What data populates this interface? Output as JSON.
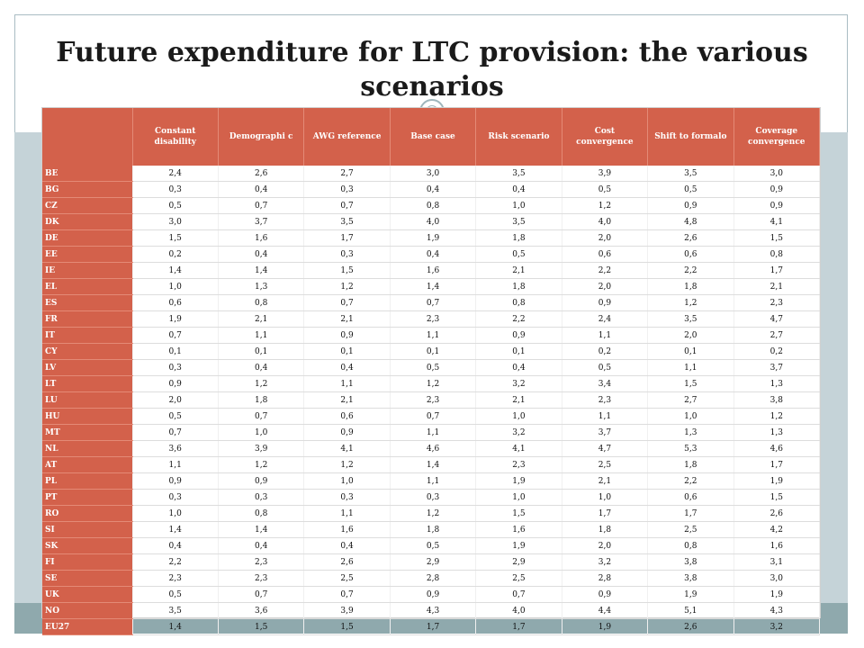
{
  "title": "Future expenditure for LTC provision: the various scenarios",
  "table": {
    "corner": "",
    "headers": [
      "Constant disability",
      "Demographi c",
      "AWG reference",
      "Base case",
      "Risk scenario",
      "Cost convergence",
      "Shift to formalo",
      "Coverage convergence"
    ],
    "rows": [
      {
        "code": "BE",
        "values": [
          "2,4",
          "2,6",
          "2,7",
          "3,0",
          "3,5",
          "3,9",
          "3,5",
          "3,0"
        ]
      },
      {
        "code": "BG",
        "values": [
          "0,3",
          "0,4",
          "0,3",
          "0,4",
          "0,4",
          "0,5",
          "0,5",
          "0,9"
        ]
      },
      {
        "code": "CZ",
        "values": [
          "0,5",
          "0,7",
          "0,7",
          "0,8",
          "1,0",
          "1,2",
          "0,9",
          "0,9"
        ]
      },
      {
        "code": "DK",
        "values": [
          "3,0",
          "3,7",
          "3,5",
          "4,0",
          "3,5",
          "4,0",
          "4,8",
          "4,1"
        ]
      },
      {
        "code": "DE",
        "values": [
          "1,5",
          "1,6",
          "1,7",
          "1,9",
          "1,8",
          "2,0",
          "2,6",
          "1,5"
        ]
      },
      {
        "code": "EE",
        "values": [
          "0,2",
          "0,4",
          "0,3",
          "0,4",
          "0,5",
          "0,6",
          "0,6",
          "0,8"
        ]
      },
      {
        "code": "IE",
        "values": [
          "1,4",
          "1,4",
          "1,5",
          "1,6",
          "2,1",
          "2,2",
          "2,2",
          "1,7"
        ]
      },
      {
        "code": "EL",
        "values": [
          "1,0",
          "1,3",
          "1,2",
          "1,4",
          "1,8",
          "2,0",
          "1,8",
          "2,1"
        ]
      },
      {
        "code": "ES",
        "values": [
          "0,6",
          "0,8",
          "0,7",
          "0,7",
          "0,8",
          "0,9",
          "1,2",
          "2,3"
        ]
      },
      {
        "code": "FR",
        "values": [
          "1,9",
          "2,1",
          "2,1",
          "2,3",
          "2,2",
          "2,4",
          "3,5",
          "4,7"
        ]
      },
      {
        "code": "IT",
        "values": [
          "0,7",
          "1,1",
          "0,9",
          "1,1",
          "0,9",
          "1,1",
          "2,0",
          "2,7"
        ]
      },
      {
        "code": "CY",
        "values": [
          "0,1",
          "0,1",
          "0,1",
          "0,1",
          "0,1",
          "0,2",
          "0,1",
          "0,2"
        ]
      },
      {
        "code": "LV",
        "values": [
          "0,3",
          "0,4",
          "0,4",
          "0,5",
          "0,4",
          "0,5",
          "1,1",
          "3,7"
        ]
      },
      {
        "code": "LT",
        "values": [
          "0,9",
          "1,2",
          "1,1",
          "1,2",
          "3,2",
          "3,4",
          "1,5",
          "1,3"
        ]
      },
      {
        "code": "LU",
        "values": [
          "2,0",
          "1,8",
          "2,1",
          "2,3",
          "2,1",
          "2,3",
          "2,7",
          "3,8"
        ]
      },
      {
        "code": "HU",
        "values": [
          "0,5",
          "0,7",
          "0,6",
          "0,7",
          "1,0",
          "1,1",
          "1,0",
          "1,2"
        ]
      },
      {
        "code": "MT",
        "values": [
          "0,7",
          "1,0",
          "0,9",
          "1,1",
          "3,2",
          "3,7",
          "1,3",
          "1,3"
        ]
      },
      {
        "code": "NL",
        "values": [
          "3,6",
          "3,9",
          "4,1",
          "4,6",
          "4,1",
          "4,7",
          "5,3",
          "4,6"
        ]
      },
      {
        "code": "AT",
        "values": [
          "1,1",
          "1,2",
          "1,2",
          "1,4",
          "2,3",
          "2,5",
          "1,8",
          "1,7"
        ]
      },
      {
        "code": "PL",
        "values": [
          "0,9",
          "0,9",
          "1,0",
          "1,1",
          "1,9",
          "2,1",
          "2,2",
          "1,9"
        ]
      },
      {
        "code": "PT",
        "values": [
          "0,3",
          "0,3",
          "0,3",
          "0,3",
          "1,0",
          "1,0",
          "0,6",
          "1,5"
        ]
      },
      {
        "code": "RO",
        "values": [
          "1,0",
          "0,8",
          "1,1",
          "1,2",
          "1,5",
          "1,7",
          "1,7",
          "2,6"
        ]
      },
      {
        "code": "SI",
        "values": [
          "1,4",
          "1,4",
          "1,6",
          "1,8",
          "1,6",
          "1,8",
          "2,5",
          "4,2"
        ]
      },
      {
        "code": "SK",
        "values": [
          "0,4",
          "0,4",
          "0,4",
          "0,5",
          "1,9",
          "2,0",
          "0,8",
          "1,6"
        ]
      },
      {
        "code": "FI",
        "values": [
          "2,2",
          "2,3",
          "2,6",
          "2,9",
          "2,9",
          "3,2",
          "3,8",
          "3,1"
        ]
      },
      {
        "code": "SE",
        "values": [
          "2,3",
          "2,3",
          "2,5",
          "2,8",
          "2,5",
          "2,8",
          "3,8",
          "3,0"
        ]
      },
      {
        "code": "UK",
        "values": [
          "0,5",
          "0,7",
          "0,7",
          "0,9",
          "0,7",
          "0,9",
          "1,9",
          "1,9"
        ]
      },
      {
        "code": "NO",
        "values": [
          "3,5",
          "3,6",
          "3,9",
          "4,3",
          "4,0",
          "4,4",
          "5,1",
          "4,3"
        ]
      },
      {
        "code": "EU27",
        "values": [
          "1,4",
          "1,5",
          "1,5",
          "1,7",
          "1,7",
          "1,9",
          "2,6",
          "3,2"
        ]
      }
    ]
  },
  "colors": {
    "header_bg": "#d3614b",
    "accent_band": "#c5d3d8",
    "bottom_band": "#8fa9ad"
  }
}
